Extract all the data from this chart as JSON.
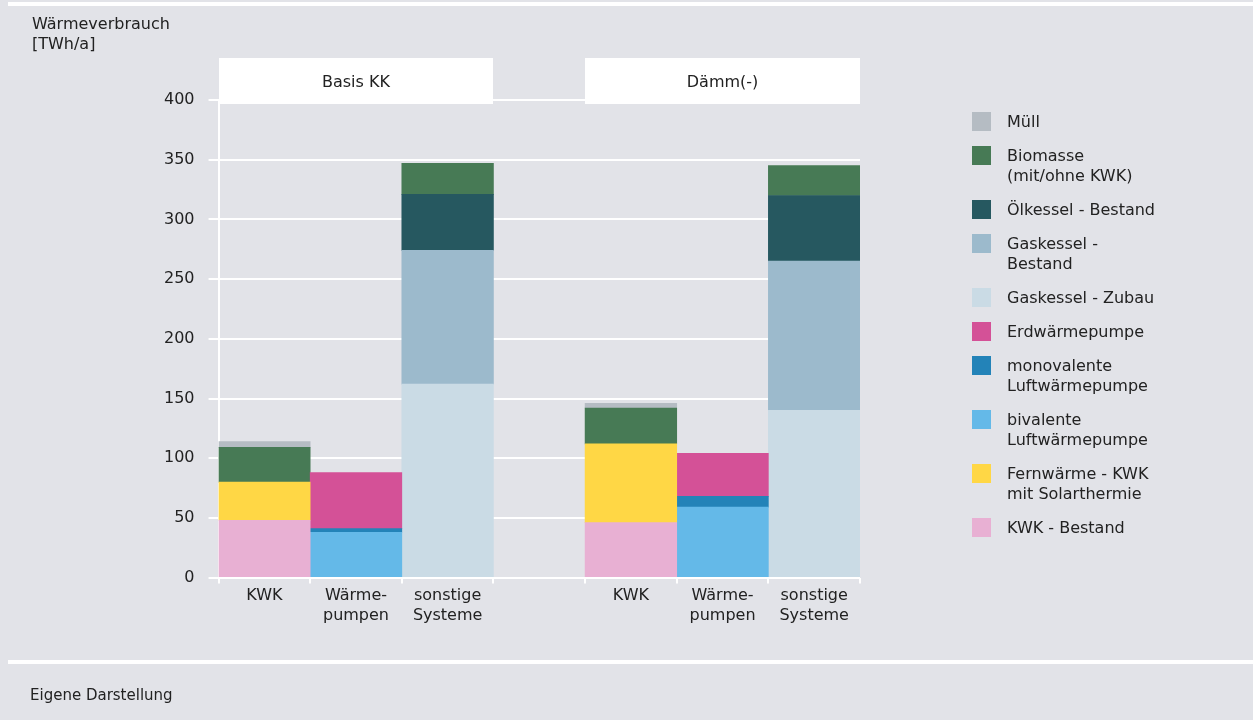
{
  "chart_data": {
    "type": "bar",
    "stacked": true,
    "ylabel": "Wärmeverbrauch [TWh/a]",
    "categories": [
      "KWK",
      "Wärme-\npumpen",
      "sonstige\nSysteme",
      null,
      "KWK",
      "Wärme-\npumpen",
      "sonstige\nSysteme"
    ],
    "ylim": [
      0,
      400
    ],
    "yticks": [
      0,
      50,
      100,
      150,
      200,
      250,
      300,
      350,
      400
    ],
    "grid": "y",
    "legend": "right",
    "annotations": [
      "Basis KK",
      "Dämm(-)",
      "Eigene Darstellung"
    ],
    "series": [
      {
        "name": "KWK - Bestand",
        "color": "#e8b0d3",
        "values": [
          48,
          null,
          null,
          null,
          46,
          null,
          null
        ]
      },
      {
        "name": "Fernwärme - KWK mit Solarthermie",
        "color": "#ffd745",
        "values": [
          32,
          null,
          null,
          null,
          66,
          null,
          null
        ]
      },
      {
        "name": "bivalente Luftwärmepumpe",
        "color": "#64b9e8",
        "values": [
          null,
          38,
          null,
          null,
          null,
          59,
          null
        ]
      },
      {
        "name": "monovalente Luftwärmepumpe",
        "color": "#2383b8",
        "values": [
          null,
          3,
          null,
          null,
          null,
          9,
          null
        ]
      },
      {
        "name": "Erdwärmepumpe",
        "color": "#d45197",
        "values": [
          null,
          47,
          null,
          null,
          null,
          36,
          null
        ]
      },
      {
        "name": "Gaskessel - Zubau",
        "color": "#cadbe5",
        "values": [
          null,
          null,
          162,
          null,
          null,
          null,
          140
        ]
      },
      {
        "name": "Gaskessel - Bestand",
        "color": "#9cbacc",
        "values": [
          null,
          null,
          112,
          null,
          null,
          null,
          125
        ]
      },
      {
        "name": "Ölkessel - Bestand",
        "color": "#265860",
        "values": [
          null,
          null,
          47,
          null,
          null,
          null,
          55
        ]
      },
      {
        "name": "Biomasse (mit/ohne KWK)",
        "color": "#477a55",
        "values": [
          29,
          null,
          26,
          null,
          30,
          null,
          25
        ]
      },
      {
        "name": "Müll",
        "color": "#b5bcc3",
        "values": [
          5,
          null,
          null,
          null,
          4,
          null,
          null
        ]
      }
    ]
  }
}
